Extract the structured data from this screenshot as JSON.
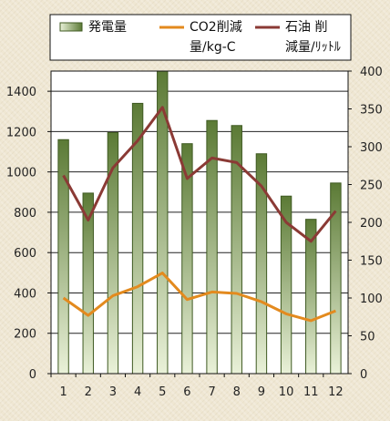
{
  "chart_data": {
    "type": "bar",
    "categories": [
      "1",
      "2",
      "3",
      "4",
      "5",
      "6",
      "7",
      "8",
      "9",
      "10",
      "11",
      "12"
    ],
    "series": [
      {
        "name": "発電量",
        "kind": "bar",
        "axis": "left",
        "values": [
          1160,
          895,
          1195,
          1340,
          1500,
          1140,
          1255,
          1230,
          1090,
          880,
          765,
          945
        ]
      },
      {
        "name": "CO2削減量/kg-C",
        "kind": "line",
        "axis": "right",
        "values": [
          100,
          77,
          103,
          115,
          133,
          98,
          108,
          106,
          95,
          79,
          70,
          83
        ]
      },
      {
        "name": "石油 削減量/ﾘｯﾄﾙ",
        "kind": "line",
        "axis": "right",
        "values": [
          262,
          203,
          272,
          308,
          352,
          258,
          285,
          279,
          248,
          200,
          175,
          215
        ]
      }
    ],
    "y_left": {
      "min": 0,
      "max": 1500,
      "ticks": [
        0,
        200,
        400,
        600,
        800,
        1000,
        1200,
        1400
      ]
    },
    "y_right": {
      "min": 0,
      "max": 400,
      "ticks": [
        0,
        50,
        100,
        150,
        200,
        250,
        300,
        350,
        400
      ]
    },
    "legend": {
      "placement": "top",
      "items": [
        {
          "lines": [
            "発電量"
          ]
        },
        {
          "lines": [
            "CO2削減",
            "量/kg-C"
          ]
        },
        {
          "lines": [
            "石油 削",
            "減量/ﾘｯﾄﾙ"
          ]
        }
      ]
    },
    "colors": {
      "bar_top": "#5b7a35",
      "bar_bottom": "#e9f1d8",
      "bar_edge": "#3f5a22",
      "co2_line": "#e38a1e",
      "oil_line": "#8b3a35",
      "plot_bg": "#ffffff",
      "grid": "#222222"
    },
    "grid": true
  }
}
